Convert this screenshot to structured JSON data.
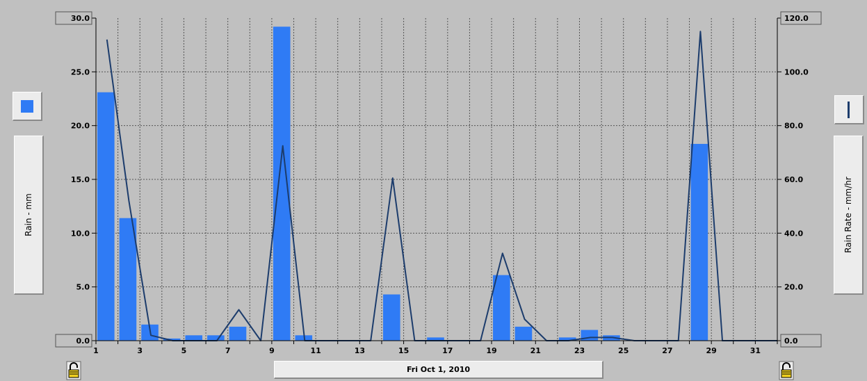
{
  "left_axis": {
    "label": "Rain - mm",
    "ticks": [
      "0.0",
      "5.0",
      "10.0",
      "15.0",
      "20.0",
      "25.0",
      "30.0"
    ]
  },
  "right_axis": {
    "label": "Rain Rate - mm/hr",
    "ticks": [
      "0.0",
      "20.0",
      "40.0",
      "60.0",
      "80.0",
      "100.0",
      "120.0"
    ]
  },
  "x_ticks": [
    "1",
    "3",
    "5",
    "7",
    "9",
    "11",
    "13",
    "15",
    "17",
    "19",
    "21",
    "23",
    "25",
    "27",
    "29",
    "31"
  ],
  "date_label": "Fri Oct 1, 2010",
  "colors": {
    "bar": "#2f7bf5",
    "line": "#1c3c6c",
    "background": "#c0c0c0",
    "grid": "#555555"
  },
  "icons": {
    "left_legend": "blue-square-icon",
    "right_legend": "line-icon",
    "locks": "padlock-icon"
  },
  "chart_data": {
    "type": "bar",
    "x_range": [
      1,
      32
    ],
    "series": [
      {
        "name": "Rain - mm",
        "type": "bar",
        "axis": "left",
        "ylim": [
          0,
          30
        ],
        "days": [
          1,
          2,
          3,
          4,
          5,
          6,
          7,
          8,
          9,
          10,
          11,
          12,
          13,
          14,
          15,
          16,
          17,
          18,
          19,
          20,
          21,
          22,
          23,
          24,
          25,
          26,
          27,
          28,
          29,
          30,
          31
        ],
        "values": [
          23.1,
          11.4,
          1.5,
          0.2,
          0.5,
          0.5,
          1.3,
          0,
          29.2,
          0.5,
          0,
          0,
          0,
          4.3,
          0,
          0.3,
          0,
          0,
          6.1,
          1.3,
          0,
          0.3,
          1.0,
          0.5,
          0,
          0,
          0,
          18.3,
          0,
          0,
          0
        ]
      },
      {
        "name": "Rain Rate - mm/hr",
        "type": "line",
        "axis": "right",
        "ylim": [
          0,
          120
        ],
        "x": [
          1.5,
          2.5,
          3.5,
          4.5,
          5.5,
          6.5,
          7.5,
          8.5,
          9.5,
          10.5,
          11.5,
          12.5,
          13.5,
          14.5,
          15.5,
          16.5,
          17.5,
          18.5,
          19.5,
          20.5,
          21.5,
          22.5,
          23.5,
          24.5,
          25.5,
          26.5,
          27.5,
          28.5,
          29.5,
          30.5,
          31.5,
          32.0
        ],
        "values": [
          112,
          52,
          2,
          0,
          0,
          0,
          11.5,
          0,
          72.5,
          0,
          0,
          0,
          0,
          60.5,
          0,
          0,
          0,
          0,
          32.5,
          8,
          0,
          0,
          1.2,
          1.2,
          0,
          0,
          0,
          115,
          0,
          0,
          0,
          0
        ]
      }
    ]
  }
}
